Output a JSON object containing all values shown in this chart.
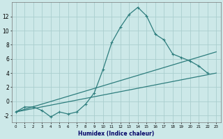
{
  "xlabel": "Humidex (Indice chaleur)",
  "x_values": [
    0,
    1,
    2,
    3,
    4,
    5,
    6,
    7,
    8,
    9,
    10,
    11,
    12,
    13,
    14,
    15,
    16,
    17,
    18,
    19,
    20,
    21,
    22,
    23
  ],
  "line1": [
    -1.5,
    -0.8,
    -0.8,
    -1.3,
    -2.2,
    -1.5,
    -1.8,
    -1.5,
    -0.4,
    1.2,
    4.5,
    8.3,
    10.5,
    12.3,
    13.3,
    12.1,
    9.5,
    8.7,
    6.7,
    6.2,
    5.7,
    5.0,
    4.0,
    null
  ],
  "line2_x": [
    0,
    23
  ],
  "line2_y": [
    -1.5,
    4.0
  ],
  "line3_x": [
    0,
    23
  ],
  "line3_y": [
    -1.5,
    7.0
  ],
  "line_color": "#2d7d7d",
  "bg_color": "#cce8e8",
  "grid_color": "#aacece",
  "ylim": [
    -3,
    14
  ],
  "xlim": [
    -0.5,
    23.5
  ],
  "yticks": [
    -2,
    0,
    2,
    4,
    6,
    8,
    10,
    12
  ],
  "xticks": [
    0,
    1,
    2,
    3,
    4,
    5,
    6,
    7,
    8,
    9,
    10,
    11,
    12,
    13,
    14,
    15,
    16,
    17,
    18,
    19,
    20,
    21,
    22,
    23
  ]
}
